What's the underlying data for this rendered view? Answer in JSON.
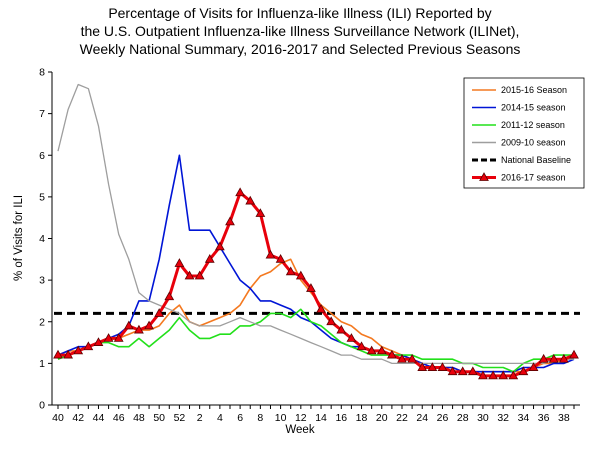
{
  "chart_data": {
    "type": "line",
    "title_lines": [
      "Percentage of Visits for Influenza-like Illness (ILI) Reported by",
      "the U.S. Outpatient Influenza-like Illness Surveillance Network (ILINet),",
      "Weekly National Summary, 2016-2017 and Selected Previous Seasons"
    ],
    "xlabel": "Week",
    "ylabel": "% of Visits for ILI",
    "ylim": [
      0,
      8
    ],
    "yticks": [
      "0",
      "1",
      "2",
      "3",
      "4",
      "5",
      "6",
      "7",
      "8"
    ],
    "weeks": [
      "40",
      "41",
      "42",
      "43",
      "44",
      "45",
      "46",
      "47",
      "48",
      "49",
      "50",
      "51",
      "52",
      "1",
      "2",
      "3",
      "4",
      "5",
      "6",
      "7",
      "8",
      "9",
      "10",
      "11",
      "12",
      "13",
      "14",
      "15",
      "16",
      "17",
      "18",
      "19",
      "20",
      "21",
      "22",
      "23",
      "24",
      "25",
      "26",
      "27",
      "28",
      "29",
      "30",
      "31",
      "32",
      "33",
      "34",
      "35",
      "36",
      "37",
      "38",
      "39"
    ],
    "xtick_labels": [
      "40",
      "42",
      "44",
      "46",
      "48",
      "50",
      "52",
      "2",
      "4",
      "6",
      "8",
      "10",
      "12",
      "14",
      "16",
      "18",
      "20",
      "22",
      "24",
      "26",
      "28",
      "30",
      "32",
      "34",
      "36",
      "38"
    ],
    "baseline": 2.2,
    "series": [
      {
        "name": "2015-16 Season",
        "color": "#f47920",
        "width": 1.6,
        "values": [
          1.2,
          1.3,
          1.3,
          1.4,
          1.5,
          1.6,
          1.6,
          1.7,
          1.8,
          1.8,
          1.9,
          2.2,
          2.4,
          2.0,
          1.9,
          2.0,
          2.1,
          2.2,
          2.4,
          2.8,
          3.1,
          3.2,
          3.4,
          3.5,
          3.0,
          2.7,
          2.4,
          2.2,
          2.0,
          1.9,
          1.7,
          1.6,
          1.4,
          1.3,
          1.2,
          1.1,
          1.0,
          0.9,
          0.9,
          0.9,
          0.8,
          0.8,
          0.8,
          0.8,
          0.8,
          0.8,
          0.8,
          0.9,
          1.0,
          1.0,
          1.1,
          1.1
        ]
      },
      {
        "name": "2014-15 season",
        "color": "#0015d6",
        "width": 1.6,
        "values": [
          1.2,
          1.3,
          1.4,
          1.4,
          1.5,
          1.6,
          1.7,
          1.9,
          2.5,
          2.5,
          3.5,
          4.8,
          6.0,
          4.2,
          4.2,
          4.2,
          3.8,
          3.4,
          3.0,
          2.8,
          2.5,
          2.5,
          2.4,
          2.3,
          2.1,
          2.0,
          1.8,
          1.6,
          1.5,
          1.4,
          1.4,
          1.3,
          1.3,
          1.2,
          1.2,
          1.1,
          1.0,
          0.9,
          0.9,
          0.9,
          0.8,
          0.8,
          0.8,
          0.8,
          0.8,
          0.8,
          0.9,
          0.9,
          0.9,
          1.0,
          1.0,
          1.1
        ]
      },
      {
        "name": "2011-12 season",
        "color": "#22e01a",
        "width": 1.6,
        "values": [
          1.1,
          1.2,
          1.3,
          1.4,
          1.5,
          1.5,
          1.4,
          1.4,
          1.6,
          1.4,
          1.6,
          1.8,
          2.1,
          1.8,
          1.6,
          1.6,
          1.7,
          1.7,
          1.9,
          1.9,
          2.0,
          2.2,
          2.2,
          2.1,
          2.3,
          2.0,
          1.9,
          1.7,
          1.5,
          1.4,
          1.3,
          1.2,
          1.2,
          1.2,
          1.2,
          1.2,
          1.1,
          1.1,
          1.1,
          1.1,
          1.0,
          1.0,
          0.9,
          0.9,
          0.9,
          0.8,
          1.0,
          1.1,
          1.1,
          1.2,
          1.2,
          1.2
        ]
      },
      {
        "name": "2009-10 season",
        "color": "#9e9e9e",
        "width": 1.3,
        "values": [
          6.1,
          7.1,
          7.7,
          7.6,
          6.7,
          5.3,
          4.1,
          3.5,
          2.7,
          2.5,
          2.4,
          2.3,
          2.2,
          2.0,
          1.9,
          1.9,
          1.9,
          2.0,
          2.1,
          2.0,
          1.9,
          1.9,
          1.8,
          1.7,
          1.6,
          1.5,
          1.4,
          1.3,
          1.2,
          1.2,
          1.1,
          1.1,
          1.1,
          1.0,
          1.0,
          1.0,
          1.0,
          1.0,
          1.0,
          1.0,
          1.0,
          1.0,
          1.0,
          1.0,
          1.0,
          1.0,
          1.0,
          1.0,
          1.0,
          1.1,
          1.1,
          1.1
        ]
      },
      {
        "name": "National Baseline",
        "color": "#000000",
        "width": 3,
        "dashed": true,
        "baseline": true
      },
      {
        "name": "2016-17 season",
        "color": "#e8000b",
        "width": 3,
        "markers": true,
        "values": [
          1.2,
          1.2,
          1.3,
          1.4,
          1.5,
          1.6,
          1.6,
          1.9,
          1.8,
          1.9,
          2.2,
          2.6,
          3.4,
          3.1,
          3.1,
          3.5,
          3.8,
          4.4,
          5.1,
          4.9,
          4.6,
          3.6,
          3.5,
          3.2,
          3.1,
          2.8,
          2.3,
          2.0,
          1.8,
          1.6,
          1.4,
          1.3,
          1.3,
          1.2,
          1.1,
          1.1,
          0.9,
          0.9,
          0.9,
          0.8,
          0.8,
          0.8,
          0.7,
          0.7,
          0.7,
          0.7,
          0.8,
          0.9,
          1.1,
          1.1,
          1.1,
          1.2
        ]
      }
    ],
    "legend_position": "top-right"
  }
}
